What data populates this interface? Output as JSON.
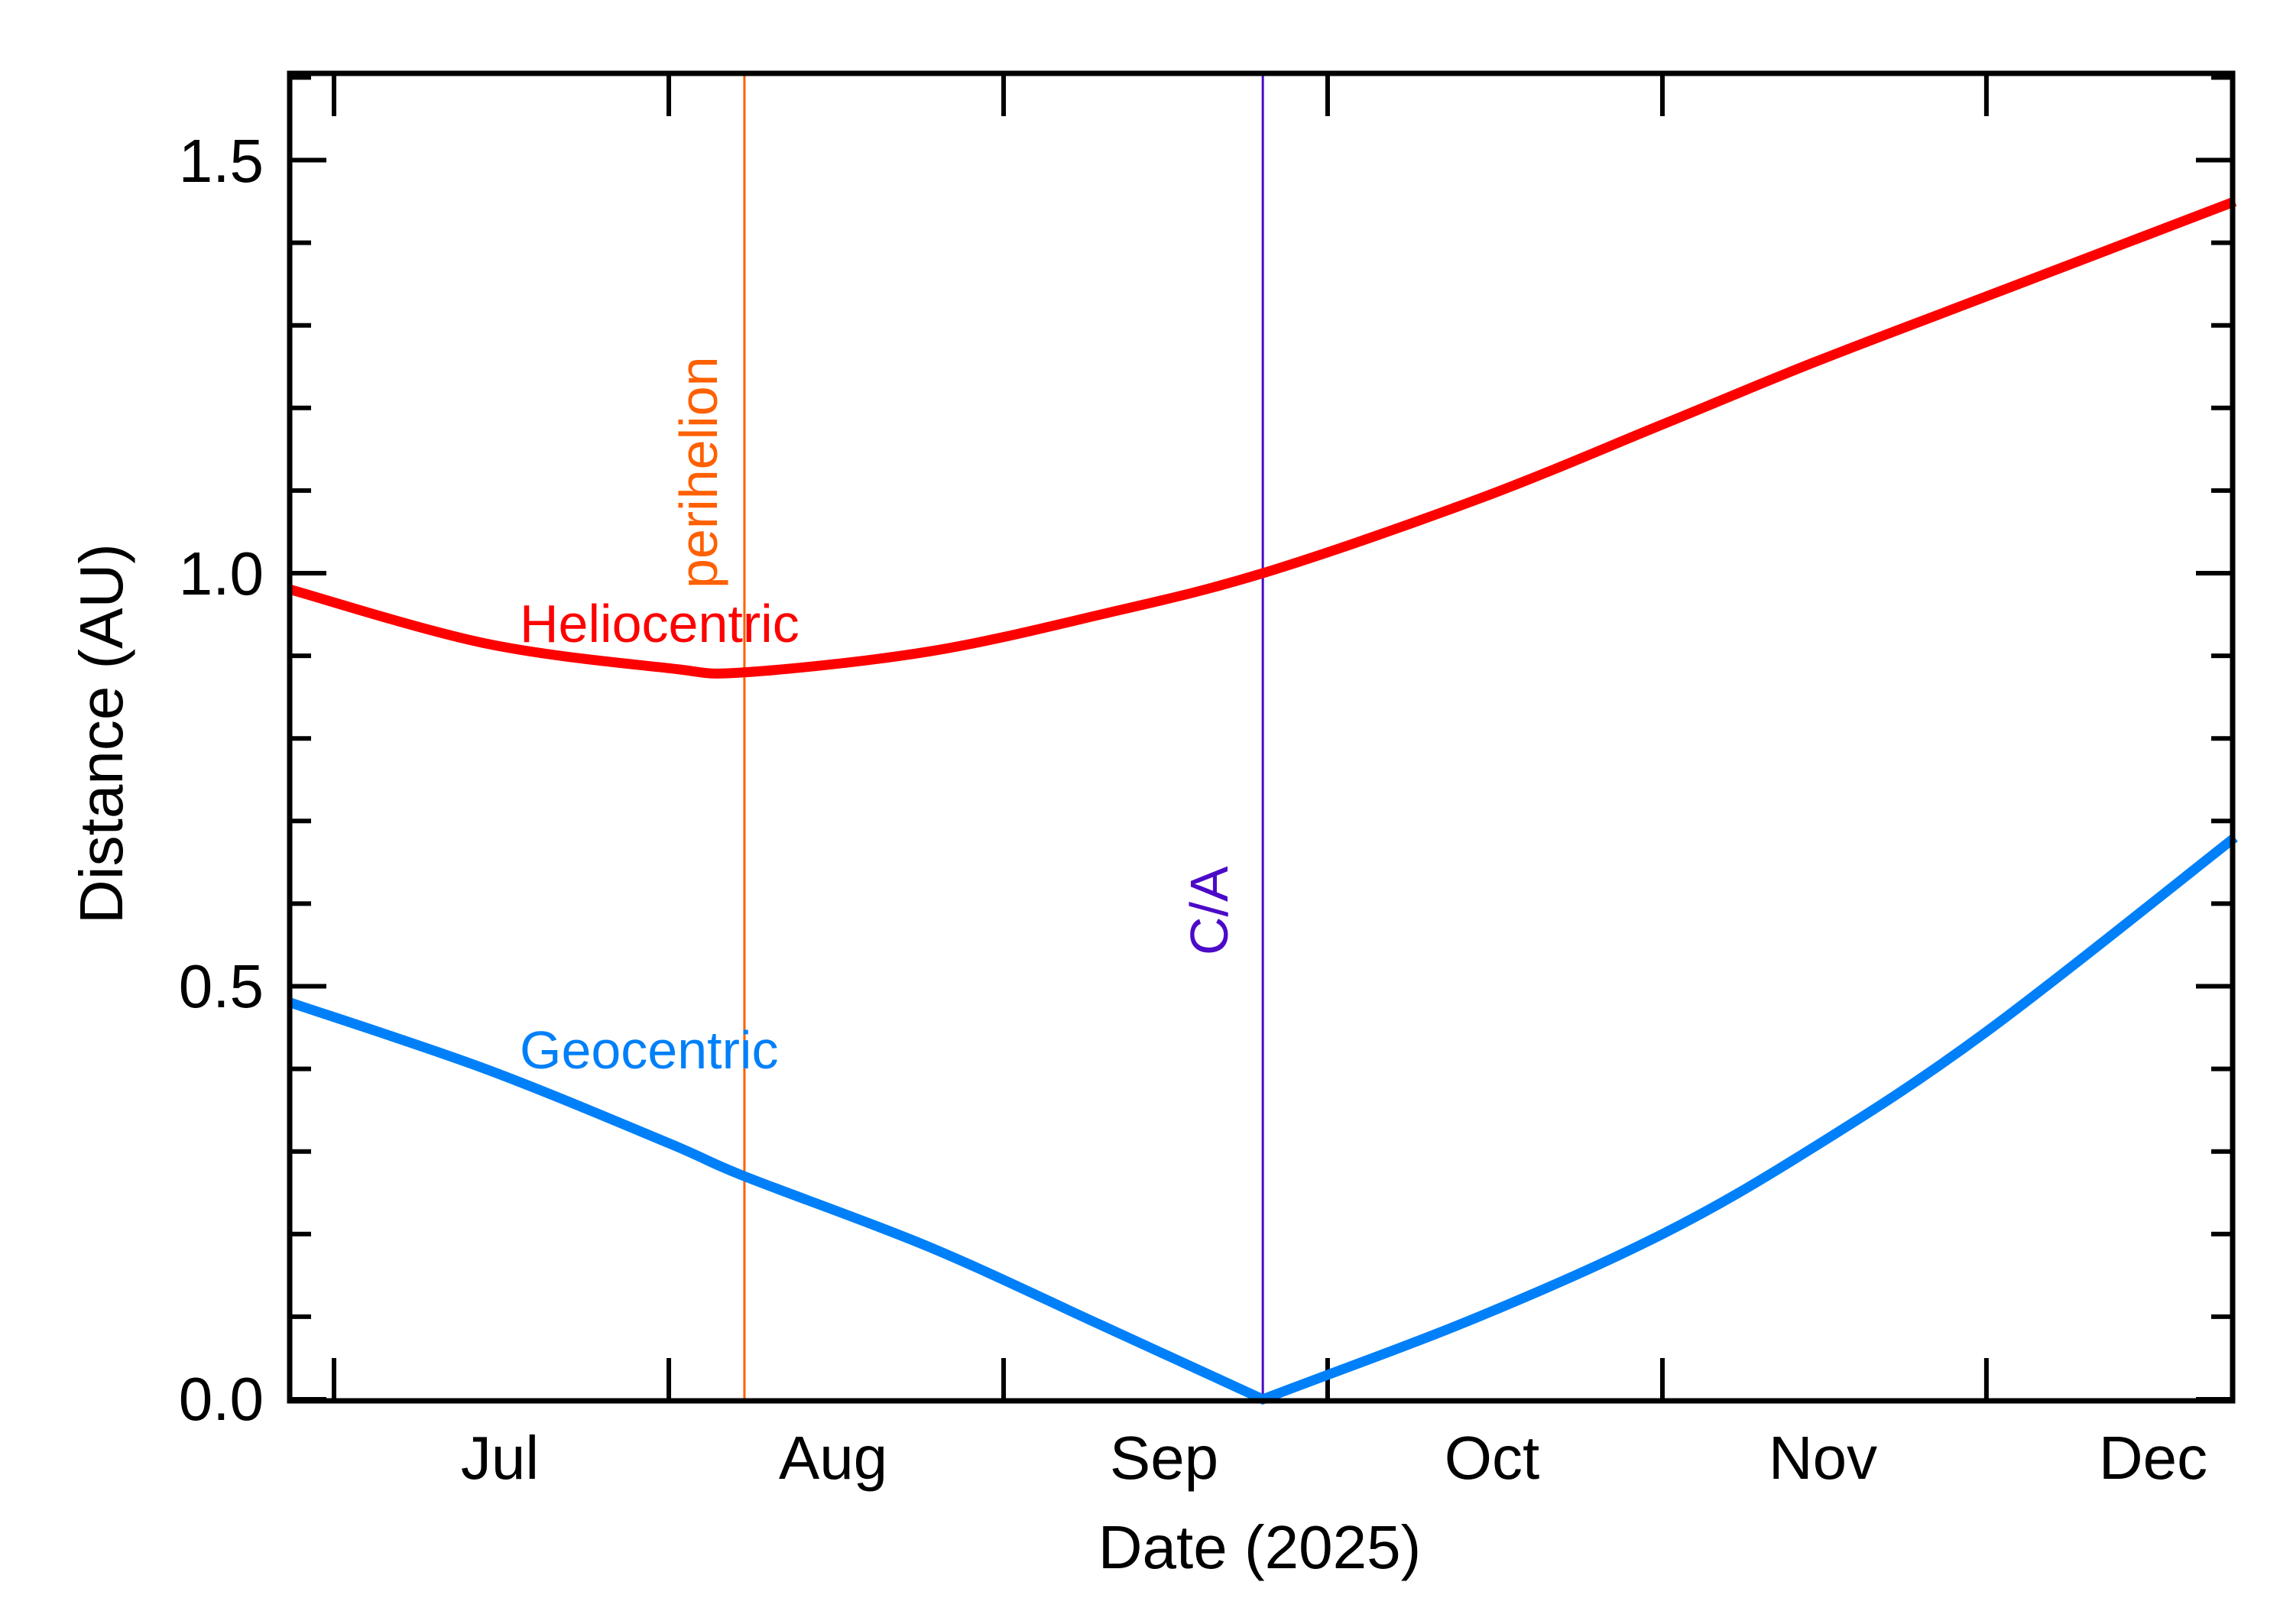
{
  "chart_data": {
    "type": "line",
    "title": "",
    "xlabel": "Date (2025)",
    "ylabel": "Distance (AU)",
    "ylim": [
      0.0,
      1.6
    ],
    "xlim": [
      "2025-06-27",
      "2025-12-24"
    ],
    "grid": false,
    "legend": "inline labels",
    "x_ticks": [
      "2025-07-01",
      "2025-08-01",
      "2025-09-01",
      "2025-10-01",
      "2025-11-01",
      "2025-12-01"
    ],
    "x_tick_labels": [
      "Jul",
      "Aug",
      "Sep",
      "Oct",
      "Nov",
      "Dec"
    ],
    "y_major_ticks": [
      0.0,
      0.5,
      1.0,
      1.5
    ],
    "y_tick_labels": [
      "0.0",
      "0.5",
      "1.0",
      "1.5"
    ],
    "y_minor_step": 0.1,
    "x": [
      "2025-06-27",
      "2025-07-15",
      "2025-08-01",
      "2025-08-08",
      "2025-08-25",
      "2025-09-10",
      "2025-09-25",
      "2025-10-15",
      "2025-11-01",
      "2025-11-15",
      "2025-12-01",
      "2025-12-24"
    ],
    "series": [
      {
        "name": "Heliocentric",
        "color": "#ff0000",
        "values": [
          0.98,
          0.915,
          0.885,
          0.88,
          0.905,
          0.95,
          1.0,
          1.09,
          1.18,
          1.255,
          1.335,
          1.45
        ]
      },
      {
        "name": "Geocentric",
        "color": "#0080f8",
        "values": [
          0.48,
          0.4,
          0.31,
          0.27,
          0.185,
          0.09,
          0.0,
          0.1,
          0.2,
          0.305,
          0.445,
          0.68
        ]
      }
    ],
    "annotations": [
      {
        "label": "perihelion",
        "date": "2025-08-08",
        "color": "#ff6000",
        "orientation": "vertical"
      },
      {
        "label": "C/A",
        "date": "2025-09-25",
        "color": "#4b0ac8",
        "orientation": "vertical"
      }
    ]
  },
  "labels": {
    "xlabel": "Date (2025)",
    "ylabel": "Distance (AU)",
    "heliocentric": "Heliocentric",
    "geocentric": "Geocentric",
    "perihelion": "perihelion",
    "ca": "C/A",
    "months": [
      "Jul",
      "Aug",
      "Sep",
      "Oct",
      "Nov",
      "Dec"
    ],
    "yticks": [
      "0.0",
      "0.5",
      "1.0",
      "1.5"
    ]
  }
}
